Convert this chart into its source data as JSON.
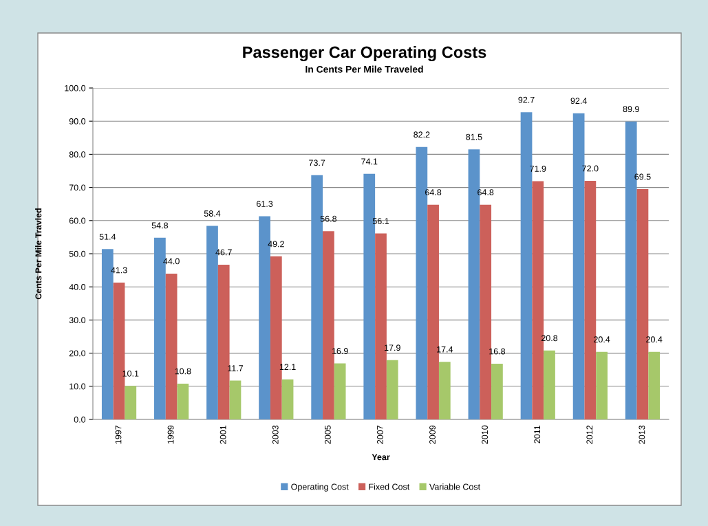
{
  "chart_data": {
    "type": "bar",
    "title": "Passenger Car Operating Costs",
    "subtitle": "In Cents Per Mile Traveled",
    "xlabel": "Year",
    "ylabel": "Cents Per Mile Travled",
    "categories": [
      "1997",
      "1999",
      "2001",
      "2003",
      "2005",
      "2007",
      "2009",
      "2010",
      "2011",
      "2012",
      "2013"
    ],
    "series": [
      {
        "name": "Operating Cost",
        "color": "#5b93cb",
        "values": [
          51.4,
          54.8,
          58.4,
          61.3,
          73.7,
          74.1,
          82.2,
          81.5,
          92.7,
          92.4,
          89.9
        ],
        "value_labels": [
          "51.4",
          "54.8",
          "58.4",
          "61.3",
          "73.7",
          "74.1",
          "82.2",
          "81.5",
          "92.7",
          "92.4",
          "89.9"
        ]
      },
      {
        "name": "Fixed Cost",
        "color": "#cc605a",
        "values": [
          41.3,
          44.0,
          46.7,
          49.2,
          56.8,
          56.1,
          64.8,
          64.8,
          71.9,
          72.0,
          69.5
        ],
        "value_labels": [
          "41.3",
          "44.0",
          "46.7",
          "49.2",
          "56.8",
          "56.1",
          "64.8",
          "64.8",
          "71.9",
          "72.0",
          "69.5"
        ]
      },
      {
        "name": "Variable Cost",
        "color": "#a6c86a",
        "values": [
          10.1,
          10.8,
          11.7,
          12.1,
          16.9,
          17.9,
          17.4,
          16.8,
          20.8,
          20.4,
          20.4
        ],
        "value_labels": [
          "10.1",
          "10.8",
          "11.7",
          "12.1",
          "16.9",
          "17.9",
          "17.4",
          "16.8",
          "20.8",
          "20.4",
          "20.4"
        ]
      }
    ],
    "ylim": [
      0,
      100
    ],
    "yticks": [
      {
        "value": 0,
        "label": "0.0"
      },
      {
        "value": 10,
        "label": "10.0"
      },
      {
        "value": 20,
        "label": "20.0"
      },
      {
        "value": 30,
        "label": "30.0"
      },
      {
        "value": 40,
        "label": "40.0"
      },
      {
        "value": 50,
        "label": "50.0"
      },
      {
        "value": 60,
        "label": "60.0"
      },
      {
        "value": 70,
        "label": "70.0"
      },
      {
        "value": 80,
        "label": "80.0"
      },
      {
        "value": 90,
        "label": "90.0"
      },
      {
        "value": 100,
        "label": "100.0"
      }
    ],
    "grid": "y",
    "legend": "bottom"
  }
}
